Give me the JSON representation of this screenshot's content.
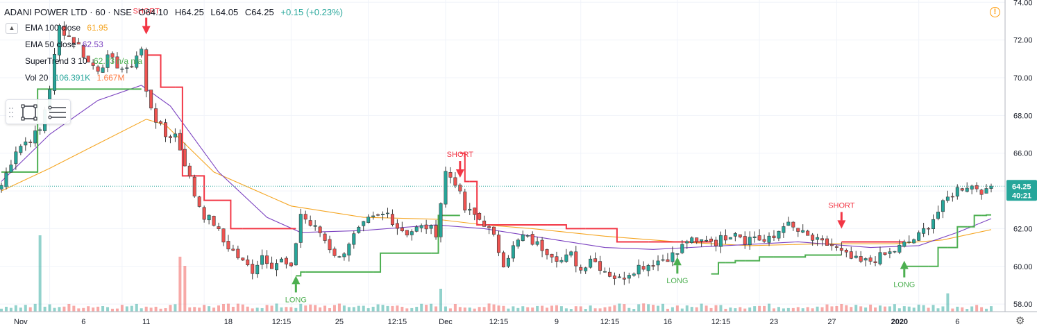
{
  "header": {
    "symbol": "ADANI POWER LTD · 60 · NSE",
    "open": "O64.10",
    "high": "H64.25",
    "low": "L64.05",
    "close": "C64.25",
    "change": "+0.15 (+0.23%)"
  },
  "indicators": [
    {
      "name": "EMA 100 close",
      "value": "61.95",
      "color": "#f5a623"
    },
    {
      "name": "EMA 50 close",
      "value": "62.53",
      "color": "#7b42c0"
    },
    {
      "name": "SuperTrend 3 10",
      "value": "62.73  n/a  n/a",
      "color": "#4caf50"
    },
    {
      "name": "Vol 20",
      "value": "106.391K",
      "value2": "1.667M",
      "color": "#26a69a",
      "color2": "#ff7c43"
    }
  ],
  "price_axis": {
    "ticks": [
      "74.00",
      "72.00",
      "70.00",
      "68.00",
      "66.00",
      "64.00",
      "62.00",
      "60.00",
      "58.00"
    ],
    "last_price": "64.25",
    "countdown": "40:21"
  },
  "time_axis": {
    "labels": [
      "Nov",
      "6",
      "11",
      "18",
      "12:15",
      "25",
      "12:15",
      "Dec",
      "12:15",
      "9",
      "12:15",
      "16",
      "12:15",
      "23",
      "27",
      "2020",
      "6"
    ]
  },
  "signals": [
    {
      "type": "short",
      "label": "SHORT"
    },
    {
      "type": "long",
      "label": "LONG"
    },
    {
      "type": "short",
      "label": "SHORT"
    },
    {
      "type": "long",
      "label": "LONG"
    },
    {
      "type": "short",
      "label": "SHORT"
    },
    {
      "type": "long",
      "label": "LONG"
    }
  ],
  "icons": {
    "collapse": "chevron-up-icon",
    "rectangle": "rectangle-tool-icon",
    "lines": "horizontal-lines-icon",
    "warning": "warning-icon",
    "settings": "gear-icon"
  },
  "colors": {
    "up": "#26a69a",
    "down": "#ef5350",
    "supertrend_up": "#4caf50",
    "supertrend_down": "#f23645",
    "ema100": "#f5a623",
    "ema50": "#7b42c0",
    "grid": "#f0f3fa"
  },
  "chart_data": {
    "type": "candlestick",
    "symbol": "ADANI POWER LTD",
    "interval": "60",
    "exchange": "NSE",
    "ylim": [
      57.6,
      74.6
    ],
    "grid": true,
    "last_price": 64.25,
    "close_anchors": [
      [
        0,
        64.3
      ],
      [
        3,
        66.2
      ],
      [
        6,
        66.8
      ],
      [
        8,
        67.2
      ],
      [
        10,
        69.5
      ],
      [
        12,
        72.7
      ],
      [
        14,
        72.2
      ],
      [
        16,
        71.7
      ],
      [
        18,
        70.8
      ],
      [
        20,
        70.5
      ],
      [
        22,
        71.0
      ],
      [
        24,
        70.7
      ],
      [
        26,
        70.3
      ],
      [
        28,
        71.2
      ],
      [
        29,
        71.5
      ],
      [
        30,
        69.2
      ],
      [
        32,
        67.8
      ],
      [
        34,
        66.9
      ],
      [
        36,
        67.0
      ],
      [
        38,
        65.5
      ],
      [
        40,
        63.8
      ],
      [
        42,
        62.7
      ],
      [
        44,
        62.3
      ],
      [
        46,
        61.3
      ],
      [
        48,
        60.8
      ],
      [
        50,
        60.2
      ],
      [
        52,
        59.8
      ],
      [
        54,
        60.6
      ],
      [
        56,
        60.1
      ],
      [
        58,
        60.3
      ],
      [
        60,
        59.8
      ],
      [
        62,
        62.8
      ],
      [
        64,
        62.2
      ],
      [
        66,
        61.8
      ],
      [
        68,
        61.0
      ],
      [
        70,
        60.4
      ],
      [
        72,
        61.3
      ],
      [
        74,
        61.9
      ],
      [
        76,
        62.4
      ],
      [
        78,
        62.6
      ],
      [
        80,
        62.8
      ],
      [
        82,
        62.1
      ],
      [
        84,
        61.8
      ],
      [
        86,
        62.0
      ],
      [
        88,
        62.1
      ],
      [
        90,
        61.8
      ],
      [
        92,
        65.0
      ],
      [
        94,
        64.5
      ],
      [
        96,
        63.0
      ],
      [
        98,
        62.7
      ],
      [
        100,
        62.3
      ],
      [
        102,
        61.5
      ],
      [
        104,
        60.2
      ],
      [
        106,
        61.0
      ],
      [
        108,
        61.6
      ],
      [
        110,
        61.3
      ],
      [
        112,
        61.0
      ],
      [
        114,
        60.7
      ],
      [
        116,
        60.3
      ],
      [
        118,
        60.6
      ],
      [
        120,
        59.8
      ],
      [
        122,
        60.5
      ],
      [
        124,
        60.0
      ],
      [
        126,
        59.6
      ],
      [
        128,
        59.3
      ],
      [
        130,
        59.7
      ],
      [
        132,
        60.0
      ],
      [
        134,
        60.1
      ],
      [
        136,
        60.3
      ],
      [
        138,
        60.5
      ],
      [
        140,
        60.7
      ],
      [
        142,
        61.4
      ],
      [
        144,
        61.2
      ],
      [
        146,
        61.5
      ],
      [
        148,
        61.3
      ],
      [
        150,
        61.6
      ],
      [
        152,
        61.9
      ],
      [
        154,
        61.4
      ],
      [
        156,
        61.6
      ],
      [
        158,
        61.3
      ],
      [
        160,
        61.5
      ],
      [
        162,
        62.3
      ],
      [
        164,
        62.0
      ],
      [
        166,
        61.7
      ],
      [
        168,
        61.4
      ],
      [
        170,
        61.2
      ],
      [
        172,
        61.1
      ],
      [
        174,
        60.7
      ],
      [
        176,
        60.4
      ],
      [
        178,
        60.2
      ],
      [
        180,
        60.3
      ],
      [
        182,
        60.5
      ],
      [
        184,
        60.7
      ],
      [
        186,
        61.0
      ],
      [
        188,
        61.3
      ],
      [
        190,
        61.6
      ],
      [
        192,
        62.2
      ],
      [
        194,
        62.9
      ],
      [
        196,
        63.6
      ],
      [
        198,
        64.1
      ],
      [
        200,
        64.3
      ],
      [
        202,
        64.2
      ],
      [
        204,
        63.9
      ],
      [
        205,
        64.25
      ]
    ],
    "supertrend": [
      [
        0,
        65.0,
        "up"
      ],
      [
        7,
        65.0,
        "up"
      ],
      [
        8,
        69.4,
        "up"
      ],
      [
        29,
        69.4,
        "up"
      ],
      [
        30,
        71.2,
        "down"
      ],
      [
        36,
        69.5,
        "down"
      ],
      [
        39,
        64.8,
        "down"
      ],
      [
        45,
        63.5,
        "down"
      ],
      [
        50,
        62.0,
        "down"
      ],
      [
        61,
        62.0,
        "down"
      ],
      [
        61,
        59.5,
        "up"
      ],
      [
        63,
        59.7,
        "up"
      ],
      [
        77,
        59.7,
        "up"
      ],
      [
        80,
        60.7,
        "up"
      ],
      [
        89,
        60.7,
        "up"
      ],
      [
        92,
        62.7,
        "up"
      ],
      [
        95,
        62.7,
        "up"
      ],
      [
        95,
        66.0,
        "down"
      ],
      [
        97,
        64.5,
        "down"
      ],
      [
        100,
        62.2,
        "down"
      ],
      [
        113,
        62.2,
        "down"
      ],
      [
        121,
        62.0,
        "down"
      ],
      [
        134,
        61.3,
        "down"
      ],
      [
        147,
        61.3,
        "down"
      ],
      [
        147,
        59.6,
        "up"
      ],
      [
        150,
        60.2,
        "up"
      ],
      [
        154,
        60.3,
        "up"
      ],
      [
        160,
        60.5,
        "up"
      ],
      [
        173,
        60.6,
        "up"
      ],
      [
        174,
        60.6,
        "up"
      ],
      [
        174,
        61.3,
        "down"
      ],
      [
        187,
        61.3,
        "down"
      ],
      [
        187,
        60.0,
        "up"
      ],
      [
        192,
        60.0,
        "up"
      ],
      [
        196,
        61.0,
        "up"
      ],
      [
        200,
        62.1,
        "up"
      ],
      [
        203,
        62.7,
        "up"
      ],
      [
        205,
        62.73,
        "up"
      ]
    ],
    "ema100": [
      [
        0,
        64.0
      ],
      [
        10,
        65.2
      ],
      [
        20,
        66.5
      ],
      [
        30,
        67.8
      ],
      [
        34,
        67.5
      ],
      [
        44,
        65.0
      ],
      [
        60,
        63.2
      ],
      [
        75,
        62.6
      ],
      [
        90,
        62.5
      ],
      [
        100,
        62.2
      ],
      [
        110,
        62.0
      ],
      [
        125,
        61.6
      ],
      [
        140,
        61.3
      ],
      [
        155,
        61.1
      ],
      [
        170,
        61.2
      ],
      [
        185,
        61.2
      ],
      [
        195,
        61.4
      ],
      [
        205,
        61.95
      ]
    ],
    "ema50": [
      [
        0,
        64.5
      ],
      [
        10,
        67.0
      ],
      [
        20,
        68.8
      ],
      [
        29,
        69.6
      ],
      [
        35,
        68.5
      ],
      [
        45,
        65.0
      ],
      [
        55,
        62.6
      ],
      [
        62,
        61.8
      ],
      [
        75,
        61.9
      ],
      [
        90,
        62.2
      ],
      [
        100,
        62.0
      ],
      [
        110,
        61.6
      ],
      [
        125,
        61.0
      ],
      [
        135,
        60.9
      ],
      [
        150,
        61.1
      ],
      [
        165,
        61.3
      ],
      [
        180,
        61.0
      ],
      [
        190,
        61.1
      ],
      [
        198,
        61.8
      ],
      [
        205,
        62.53
      ]
    ],
    "volume_peaks": [
      [
        8,
        1.667
      ],
      [
        37,
        1.2
      ],
      [
        38,
        1.0
      ],
      [
        91,
        0.5
      ],
      [
        196,
        0.4
      ]
    ],
    "signals": [
      {
        "type": "short",
        "bar": 30,
        "price": 72.3
      },
      {
        "type": "long",
        "bar": 61,
        "price": 59.5
      },
      {
        "type": "short",
        "bar": 95,
        "price": 64.7
      },
      {
        "type": "long",
        "bar": 140,
        "price": 60.5
      },
      {
        "type": "short",
        "bar": 174,
        "price": 62.0
      },
      {
        "type": "long",
        "bar": 187,
        "price": 60.3
      }
    ]
  }
}
